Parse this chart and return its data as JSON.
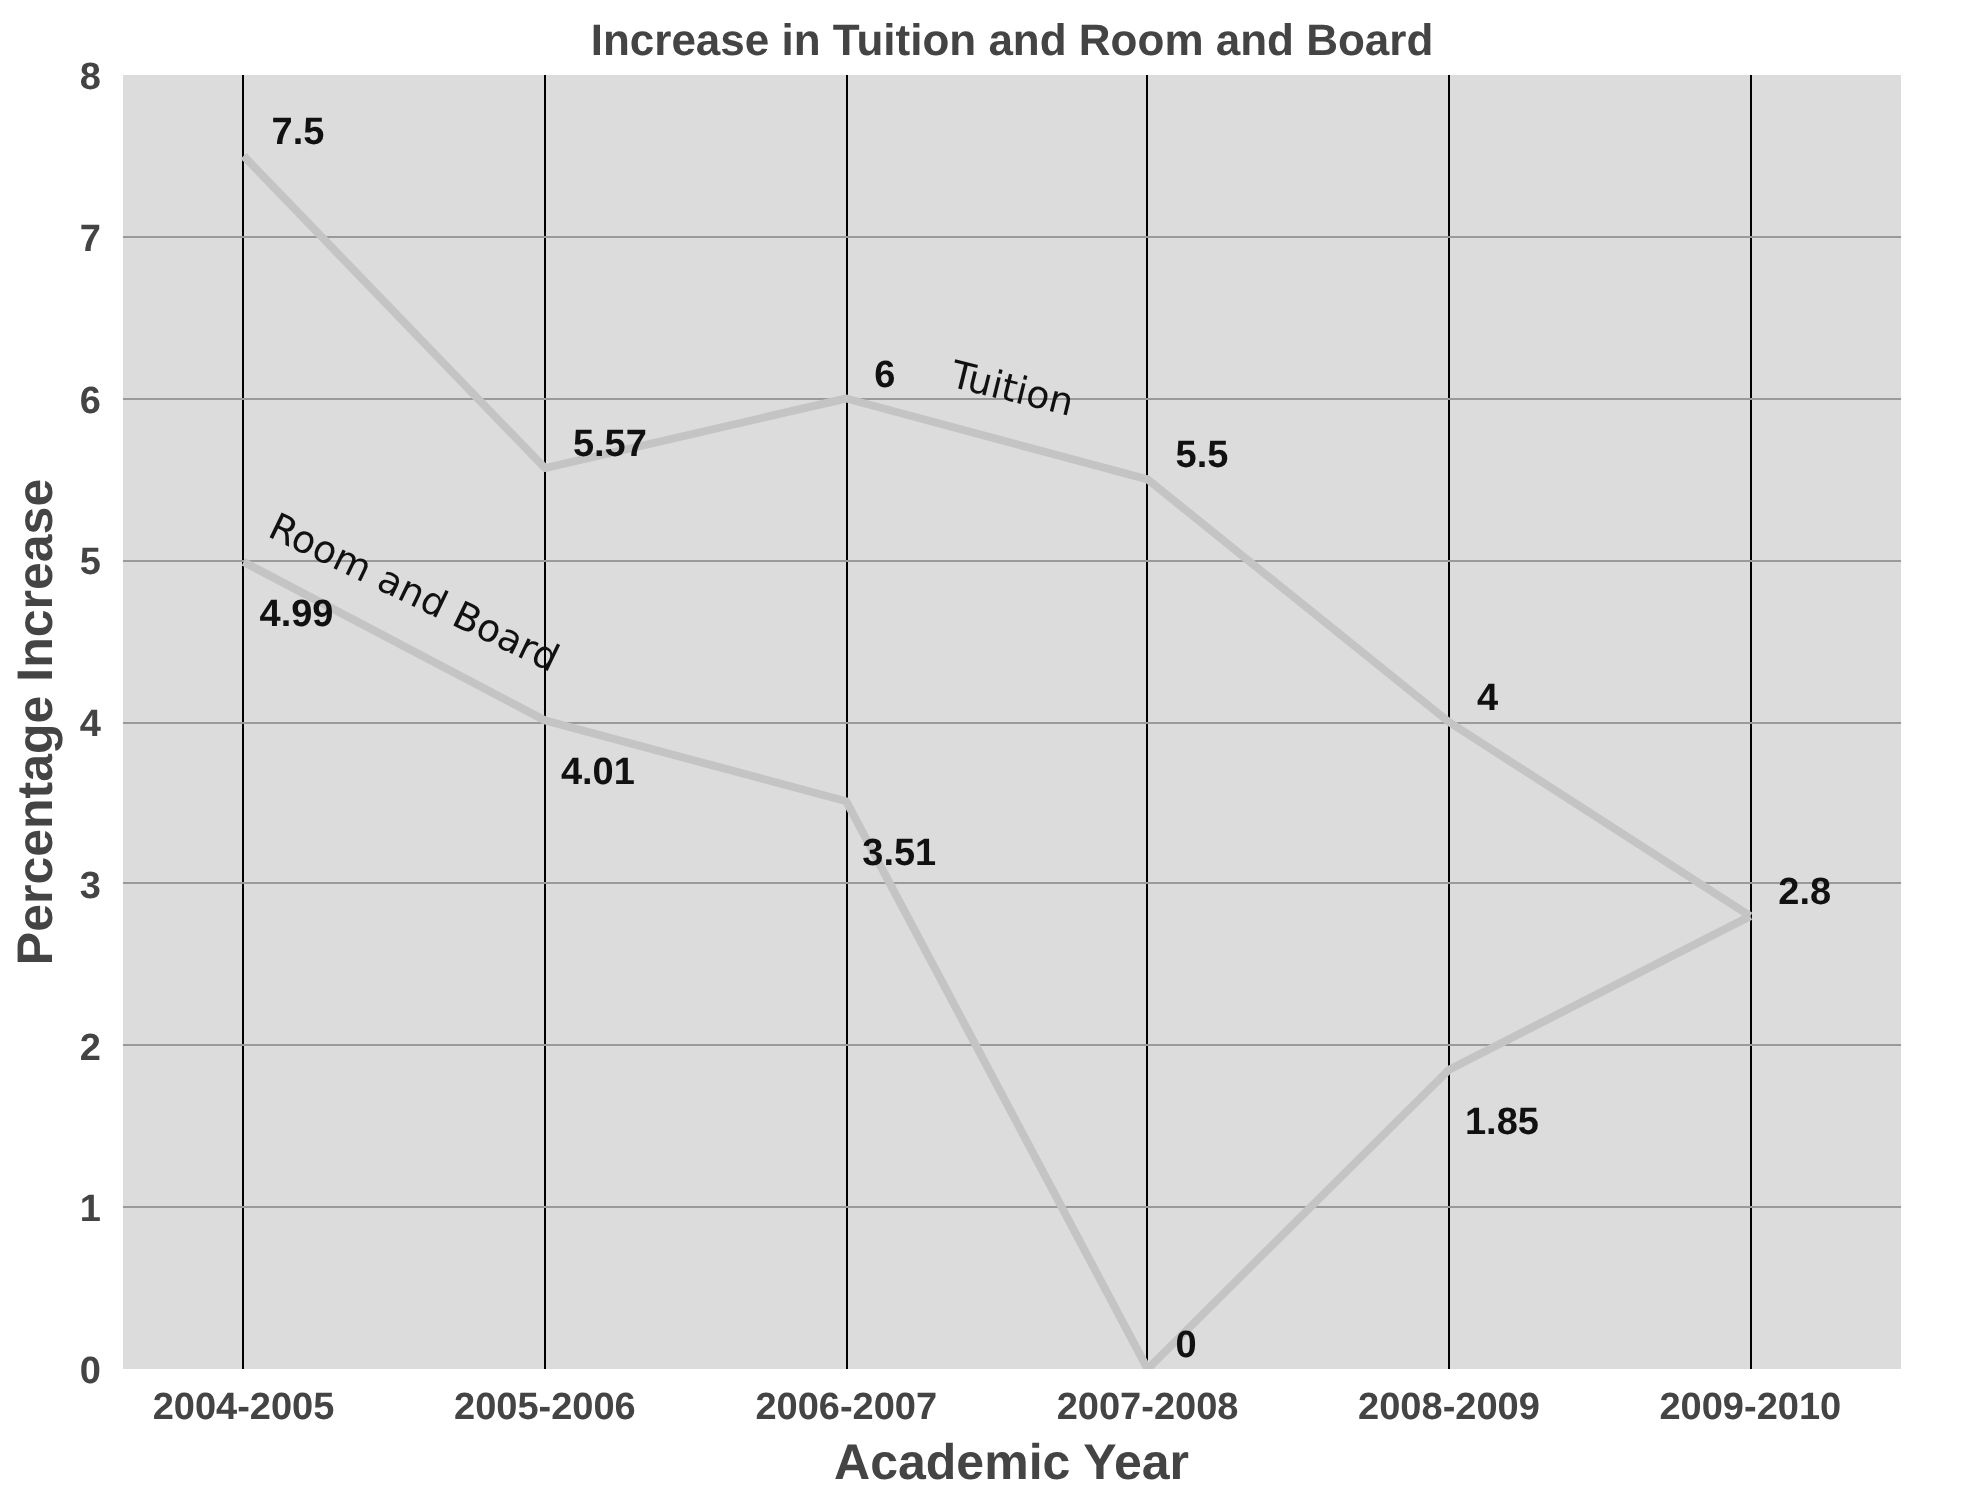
{
  "chart_data": {
    "type": "line",
    "title": "Increase in Tuition and Room and Board",
    "xlabel": "Academic Year",
    "ylabel": "Percentage Increase",
    "categories": [
      "2004-2005",
      "2005-2006",
      "2006-2007",
      "2007-2008",
      "2008-2009",
      "2009-2010"
    ],
    "series": [
      {
        "name": "Tuition",
        "color": "#c4c4c4",
        "values": [
          7.5,
          5.57,
          6,
          5.5,
          4,
          2.8
        ]
      },
      {
        "name": "Room and Board",
        "color": "#c4c4c4",
        "values": [
          4.99,
          4.01,
          3.51,
          0,
          1.85,
          2.8
        ],
        "value_labels": [
          "4.99",
          "4.01",
          "3.51",
          "0",
          "1.85",
          null
        ]
      }
    ],
    "ylim": [
      0,
      8
    ],
    "yticks": [
      0,
      1,
      2,
      3,
      4,
      5,
      6,
      7,
      8
    ],
    "grid": true,
    "data_labels": true,
    "marker": "none",
    "line_style": "solid"
  }
}
